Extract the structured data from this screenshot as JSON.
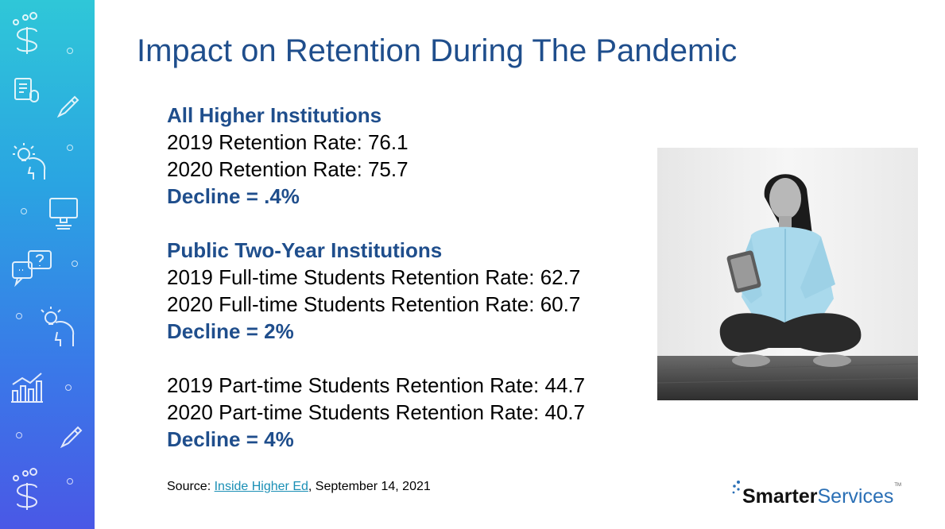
{
  "slide": {
    "title": "Impact on Retention During The Pandemic"
  },
  "content": {
    "section1": {
      "heading": "All Higher Institutions",
      "line1": "2019 Retention Rate: 76.1",
      "line2": "2020 Retention Rate: 75.7",
      "decline": "Decline = .4%"
    },
    "section2": {
      "heading": "Public Two-Year Institutions",
      "line1": "2019 Full-time Students Retention Rate: 62.7",
      "line2": "2020 Full-time Students Retention Rate: 60.7",
      "decline": "Decline = 2%"
    },
    "section3": {
      "line1": "2019 Part-time Students Retention Rate: 44.7",
      "line2": "2020 Part-time Students Retention Rate: 40.7",
      "decline": "Decline = 4%"
    }
  },
  "source": {
    "prefix": "Source: ",
    "link_text": "Inside Higher Ed",
    "suffix": ", September 14, 2021"
  },
  "logo": {
    "part1": "Smarter",
    "part2": "Services",
    "tm": "TM"
  },
  "sidebar_icons": [
    "s-logo-icon",
    "document-icon",
    "pencil-icon",
    "lightbulb-head-icon",
    "monitor-icon",
    "chat-bubbles-icon",
    "lightbulb-head-icon",
    "bar-chart-icon",
    "pencil-icon",
    "s-logo-icon"
  ],
  "colors": {
    "accent": "#1f4e8c",
    "link": "#1a8fb5",
    "sidebar_top": "#2fc7d8",
    "sidebar_bottom": "#4a58e6"
  }
}
